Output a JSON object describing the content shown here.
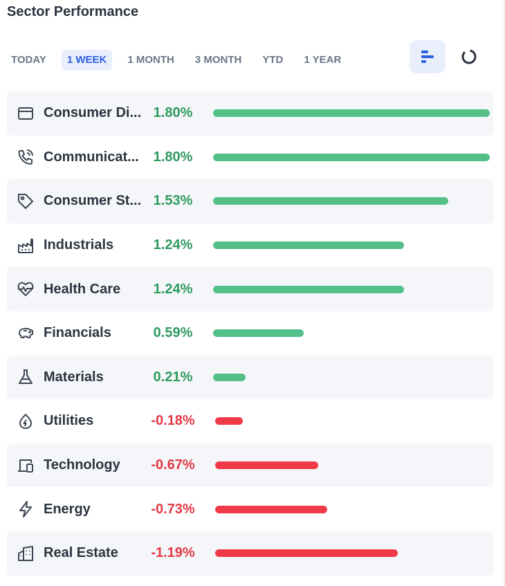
{
  "header": {
    "title": "Sector Performance"
  },
  "tabs": [
    {
      "label": "TODAY",
      "active": false
    },
    {
      "label": "1 WEEK",
      "active": true
    },
    {
      "label": "1 MONTH",
      "active": false
    },
    {
      "label": "3 MONTH",
      "active": false
    },
    {
      "label": "YTD",
      "active": false
    },
    {
      "label": "1 YEAR",
      "active": false
    }
  ],
  "view_toggle": {
    "selected": "bar",
    "options": [
      "bar-chart-icon",
      "donut-chart-icon"
    ]
  },
  "colors": {
    "positive": "#55bf8a",
    "positive_text": "#2e9a5e",
    "negative": "#f03a48",
    "negative_text": "#e23a44",
    "accent": "#2d5fe0"
  },
  "chart_data": {
    "type": "bar",
    "categories": [
      "Consumer Discretionary",
      "Communication Services",
      "Consumer Staples",
      "Industrials",
      "Health Care",
      "Financials",
      "Materials",
      "Utilities",
      "Technology",
      "Energy",
      "Real Estate"
    ],
    "values": [
      1.8,
      1.8,
      1.53,
      1.24,
      1.24,
      0.59,
      0.21,
      -0.18,
      -0.67,
      -0.73,
      -1.19
    ],
    "title": "Sector Performance",
    "xlabel": "",
    "ylabel": ""
  },
  "sectors": [
    {
      "name": "Consumer Discretionary",
      "display": "Consumer Di...",
      "value": 1.8,
      "label": "1.80%",
      "icon": "credit-card-icon"
    },
    {
      "name": "Communication Services",
      "display": "Communicat...",
      "value": 1.8,
      "label": "1.80%",
      "icon": "phone-icon"
    },
    {
      "name": "Consumer Staples",
      "display": "Consumer St...",
      "value": 1.53,
      "label": "1.53%",
      "icon": "tag-icon"
    },
    {
      "name": "Industrials",
      "display": "Industrials",
      "value": 1.24,
      "label": "1.24%",
      "icon": "factory-icon"
    },
    {
      "name": "Health Care",
      "display": "Health Care",
      "value": 1.24,
      "label": "1.24%",
      "icon": "heartbeat-icon"
    },
    {
      "name": "Financials",
      "display": "Financials",
      "value": 0.59,
      "label": "0.59%",
      "icon": "piggy-bank-icon"
    },
    {
      "name": "Materials",
      "display": "Materials",
      "value": 0.21,
      "label": "0.21%",
      "icon": "flask-icon"
    },
    {
      "name": "Utilities",
      "display": "Utilities",
      "value": -0.18,
      "label": "-0.18%",
      "icon": "flame-icon"
    },
    {
      "name": "Technology",
      "display": "Technology",
      "value": -0.67,
      "label": "-0.67%",
      "icon": "devices-icon"
    },
    {
      "name": "Energy",
      "display": "Energy",
      "value": -0.73,
      "label": "-0.73%",
      "icon": "lightning-icon"
    },
    {
      "name": "Real Estate",
      "display": "Real Estate",
      "value": -1.19,
      "label": "-1.19%",
      "icon": "buildings-icon"
    }
  ]
}
